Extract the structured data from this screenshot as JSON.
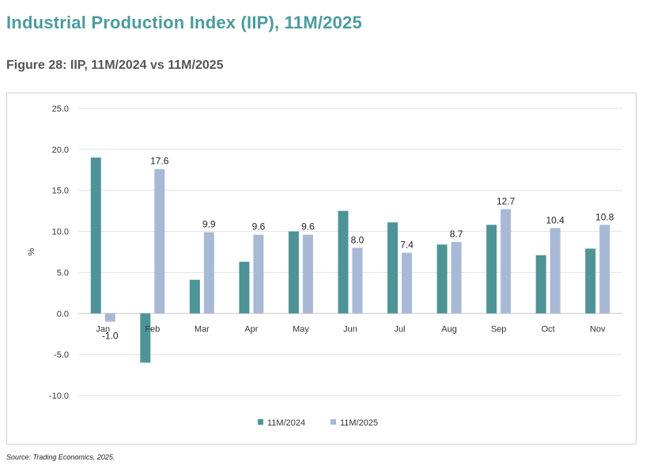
{
  "header": {
    "title": "Industrial Production Index (IIP), 11M/2025",
    "figure_title": "Figure 28: IIP, 11M/2024 vs 11M/2025"
  },
  "source": "Source: Trading Economics, 2025.",
  "colors": {
    "title": "#4b9c9e",
    "series_2024": "#4e9497",
    "series_2025": "#a8b9d6"
  },
  "chart_data": {
    "type": "bar",
    "title": "",
    "xlabel": "",
    "ylabel": "%",
    "ylim": [
      -10,
      25
    ],
    "yticks": [
      25,
      20,
      15,
      10,
      5,
      0,
      -5,
      -10
    ],
    "ytick_labels": [
      "25.0",
      "20.0",
      "15.0",
      "10.0",
      "5.0",
      "0.0",
      "-5.0",
      "-10.0"
    ],
    "grid": true,
    "legend": "bottom-center",
    "categories": [
      "Jan",
      "Feb",
      "Mar",
      "Apr",
      "May",
      "Jun",
      "Jul",
      "Aug",
      "Sep",
      "Oct",
      "Nov"
    ],
    "series": [
      {
        "name": "11M/2024",
        "values": [
          19.0,
          -6.0,
          4.1,
          6.3,
          10.0,
          12.5,
          11.1,
          8.4,
          10.8,
          7.1,
          7.9
        ],
        "labels": [
          "",
          "",
          "",
          "",
          "",
          "",
          "",
          "",
          "",
          "",
          ""
        ]
      },
      {
        "name": "11M/2025",
        "values": [
          -1.0,
          17.6,
          9.9,
          9.6,
          9.6,
          8.0,
          7.4,
          8.7,
          12.7,
          10.4,
          10.8
        ],
        "labels": [
          "-1.0",
          "17.6",
          "9.9",
          "9.6",
          "9.6",
          "8.0",
          "7.4",
          "8.7",
          "12.7",
          "10.4",
          "10.8"
        ]
      }
    ]
  }
}
